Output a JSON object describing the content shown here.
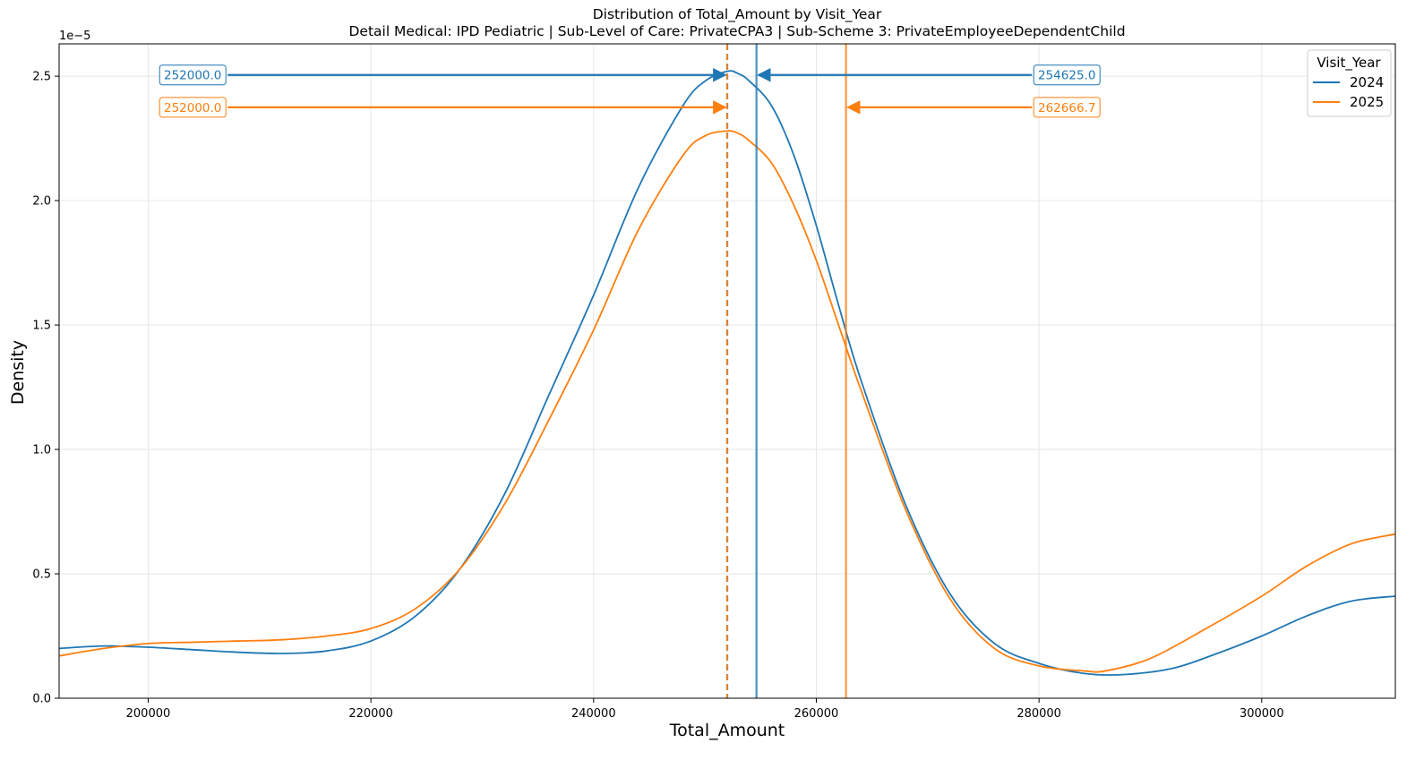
{
  "chart_data": {
    "type": "line",
    "title": "Distribution of Total_Amount by Visit_Year",
    "subtitle": "Detail Medical: IPD Pediatric | Sub-Level of Care: PrivateCPA3 | Sub-Scheme 3: PrivateEmployeeDependentChild",
    "xlabel": "Total_Amount",
    "ylabel": "Density",
    "y_scale_label": "1e−5",
    "xlim": [
      192000,
      312000
    ],
    "ylim": [
      0,
      2.63
    ],
    "x_ticks": [
      200000,
      220000,
      240000,
      260000,
      280000,
      300000
    ],
    "y_ticks": [
      0.0,
      0.5,
      1.0,
      1.5,
      2.0,
      2.5
    ],
    "y_tick_labels": [
      "0.0",
      "0.5",
      "1.0",
      "1.5",
      "2.0",
      "2.5"
    ],
    "grid": true,
    "legend": {
      "title": "Visit_Year",
      "placement": "top-right"
    },
    "series": [
      {
        "name": "2024",
        "color": "#1f77b4",
        "x": [
          192000,
          196000,
          200000,
          204000,
          208000,
          212000,
          216000,
          220000,
          224000,
          228000,
          232000,
          236000,
          240000,
          244000,
          248000,
          250000,
          252000,
          253000,
          254000,
          256000,
          258000,
          260000,
          262000,
          264000,
          268000,
          272000,
          276000,
          280000,
          284000,
          287500,
          292000,
          296000,
          300000,
          304000,
          308000,
          312000
        ],
        "y": [
          0.2,
          0.21,
          0.205,
          0.195,
          0.185,
          0.18,
          0.19,
          0.23,
          0.33,
          0.52,
          0.82,
          1.22,
          1.62,
          2.05,
          2.38,
          2.48,
          2.52,
          2.51,
          2.48,
          2.38,
          2.18,
          1.9,
          1.58,
          1.28,
          0.78,
          0.42,
          0.22,
          0.14,
          0.1,
          0.095,
          0.12,
          0.18,
          0.25,
          0.33,
          0.39,
          0.41
        ]
      },
      {
        "name": "2025",
        "color": "#ff7f0e",
        "x": [
          192000,
          196000,
          200000,
          204000,
          208000,
          212000,
          216000,
          220000,
          224000,
          228000,
          232000,
          236000,
          240000,
          244000,
          248000,
          250000,
          252000,
          253000,
          254000,
          256000,
          258000,
          260000,
          262000,
          264000,
          268000,
          272000,
          276000,
          280000,
          284000,
          286000,
          290000,
          295000,
          300000,
          304000,
          308000,
          312000
        ],
        "y": [
          0.17,
          0.2,
          0.22,
          0.225,
          0.23,
          0.235,
          0.25,
          0.28,
          0.36,
          0.52,
          0.78,
          1.12,
          1.48,
          1.88,
          2.18,
          2.26,
          2.28,
          2.27,
          2.24,
          2.15,
          1.98,
          1.76,
          1.5,
          1.24,
          0.76,
          0.4,
          0.2,
          0.13,
          0.11,
          0.11,
          0.16,
          0.28,
          0.41,
          0.53,
          0.62,
          0.66
        ]
      }
    ],
    "vertical_lines": [
      {
        "series": "2024",
        "x": 252000,
        "style": "dashed",
        "color": "#1f77b4"
      },
      {
        "series": "2025",
        "x": 252000,
        "style": "dashed",
        "color": "#ff7f0e"
      },
      {
        "series": "2024",
        "x": 254625,
        "style": "solid",
        "color": "#1f77b4"
      },
      {
        "series": "2025",
        "x": 262666.7,
        "style": "solid",
        "color": "#ff7f0e"
      }
    ],
    "annotations": [
      {
        "text": "252000.0",
        "color": "#1f77b4",
        "text_x": 204000,
        "x": 252000,
        "y": 2.505,
        "side": "left"
      },
      {
        "text": "252000.0",
        "color": "#ff7f0e",
        "text_x": 204000,
        "x": 252000,
        "y": 2.375,
        "side": "left"
      },
      {
        "text": "254625.0",
        "color": "#1f77b4",
        "text_x": 282500,
        "x": 254625,
        "y": 2.505,
        "side": "right"
      },
      {
        "text": "262666.7",
        "color": "#ff7f0e",
        "text_x": 282500,
        "x": 262666.7,
        "y": 2.375,
        "side": "right"
      }
    ]
  }
}
